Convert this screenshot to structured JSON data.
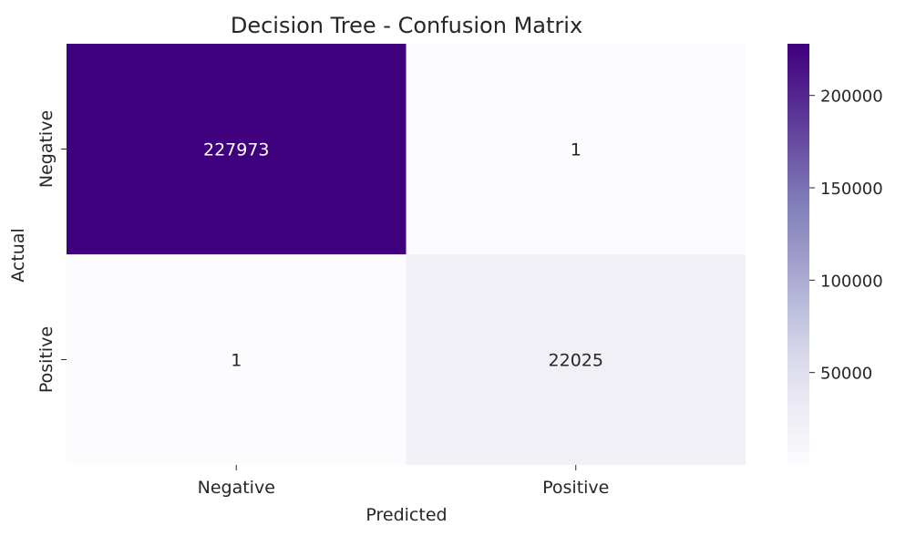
{
  "chart_data": {
    "type": "heatmap",
    "title": "Decision Tree - Confusion Matrix",
    "xlabel": "Predicted",
    "ylabel": "Actual",
    "x_categories": [
      "Negative",
      "Positive"
    ],
    "y_categories": [
      "Negative",
      "Positive"
    ],
    "values": [
      [
        227973,
        1
      ],
      [
        1,
        22025
      ]
    ],
    "colormap": "Purples",
    "colorbar": {
      "min": 1,
      "max": 227973,
      "ticks": [
        50000,
        100000,
        150000,
        200000
      ],
      "tick_labels": [
        "50000",
        "100000",
        "150000",
        "200000"
      ]
    },
    "colors": {
      "low": "#fcfbfd",
      "high": "#3f007d",
      "dark_text": "#262626",
      "light_text": "#ffffff"
    }
  }
}
